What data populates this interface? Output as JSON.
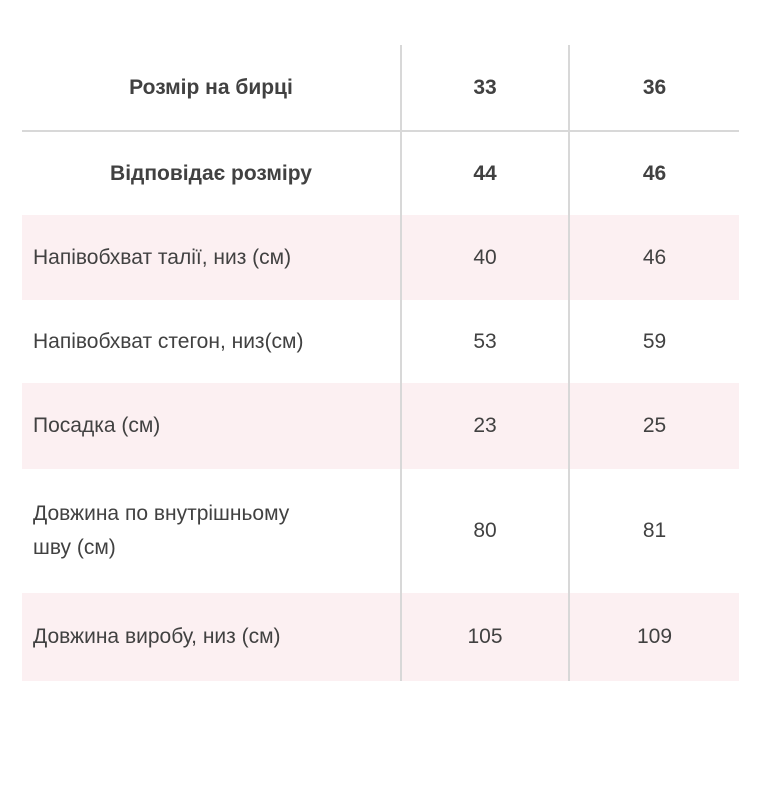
{
  "table": {
    "rows": [
      {
        "label": "Розмір на бирці",
        "v1": "33",
        "v2": "36"
      },
      {
        "label": "Відповідає розміру",
        "v1": "44",
        "v2": "46"
      },
      {
        "label": "Напівобхват талії, низ (см)",
        "v1": "40",
        "v2": "46"
      },
      {
        "label": "Напівобхват стегон, низ(см)",
        "v1": "53",
        "v2": "59"
      },
      {
        "label": "Посадка (см)",
        "v1": "23",
        "v2": "25"
      },
      {
        "label": "Довжина по внутрішньому шву (см)",
        "v1": "80",
        "v2": "81"
      },
      {
        "label": "Довжина виробу, низ (см)",
        "v1": "105",
        "v2": "109"
      }
    ],
    "colors": {
      "stripe_pink": "#fcf0f2",
      "divider_gray": "#d8d8d8",
      "text": "#414141",
      "background": "#ffffff"
    }
  },
  "chart_data": {
    "type": "table",
    "columns": [
      "",
      "33",
      "36"
    ],
    "rows": [
      [
        "Розмір на бирці",
        "33",
        "36"
      ],
      [
        "Відповідає розміру",
        "44",
        "46"
      ],
      [
        "Напівобхват талії, низ (см)",
        "40",
        "46"
      ],
      [
        "Напівобхват стегон, низ(см)",
        "53",
        "59"
      ],
      [
        "Посадка (см)",
        "23",
        "25"
      ],
      [
        "Довжина по внутрішньому шву (см)",
        "80",
        "81"
      ],
      [
        "Довжина виробу, низ (см)",
        "105",
        "109"
      ]
    ],
    "title": "",
    "layout_hints": {
      "header_rows_bold": [
        0,
        1
      ],
      "pink_striped_rows": [
        2,
        4,
        6
      ],
      "horizontal_divider_after_row": 0,
      "vertical_dividers_between_columns": true
    }
  }
}
